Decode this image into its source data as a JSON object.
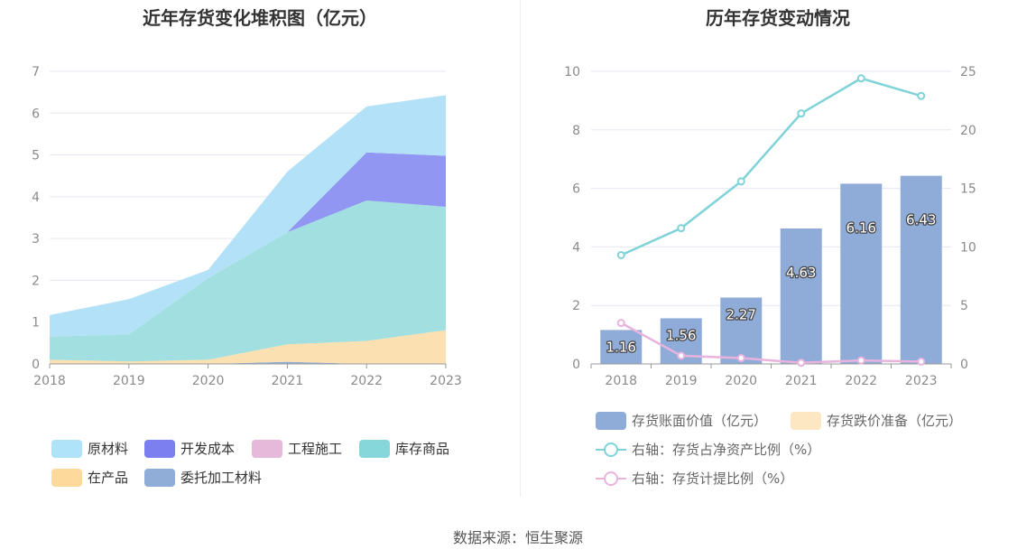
{
  "titles": {
    "left": "近年存货变化堆积图（亿元）",
    "right": "历年存货变动情况"
  },
  "source": "数据来源：恒生聚源",
  "chart_data": [
    {
      "type": "area",
      "title": "近年存货变化堆积图（亿元）",
      "x": [
        "2018",
        "2019",
        "2020",
        "2021",
        "2022",
        "2023"
      ],
      "ylim": [
        0,
        7
      ],
      "yticks": [
        "0",
        "1",
        "2",
        "3",
        "4",
        "5",
        "6",
        "7"
      ],
      "grid": true,
      "legend_position": "bottom",
      "stack_order": [
        "委托加工材料",
        "在产品",
        "库存商品",
        "工程施工",
        "开发成本",
        "原材料"
      ],
      "series": [
        {
          "name": "原材料",
          "color": "#b3e1f7",
          "values": [
            0.52,
            0.84,
            0.2,
            1.45,
            1.1,
            1.45
          ]
        },
        {
          "name": "开发成本",
          "color": "#9196f2",
          "values": [
            0.0,
            0.0,
            0.0,
            0.0,
            1.15,
            1.22
          ]
        },
        {
          "name": "工程施工",
          "color": "#e6b8da",
          "values": [
            0.0,
            0.0,
            0.0,
            0.0,
            0.0,
            0.0
          ]
        },
        {
          "name": "库存商品",
          "color": "#a1dfe0",
          "values": [
            0.55,
            0.65,
            1.95,
            2.68,
            3.36,
            2.95
          ]
        },
        {
          "name": "在产品",
          "color": "#fbe0b1",
          "values": [
            0.1,
            0.06,
            0.1,
            0.42,
            0.55,
            0.81
          ]
        },
        {
          "name": "委托加工材料",
          "color": "#8fadd6",
          "values": [
            0.0,
            0.0,
            0.0,
            0.05,
            0.0,
            0.0
          ]
        }
      ],
      "legend": [
        {
          "label": "原材料",
          "color": "#aee3fa"
        },
        {
          "label": "开发成本",
          "color": "#7b7ff0"
        },
        {
          "label": "工程施工",
          "color": "#e6b8da"
        },
        {
          "label": "库存商品",
          "color": "#86d7d9"
        },
        {
          "label": "在产品",
          "color": "#fdd99b"
        },
        {
          "label": "委托加工材料",
          "color": "#8fadd6"
        }
      ]
    },
    {
      "type": "bar",
      "title": "历年存货变动情况",
      "categories": [
        "2018",
        "2019",
        "2020",
        "2021",
        "2022",
        "2023"
      ],
      "ylim": [
        0,
        10
      ],
      "yticks": [
        "0",
        "2",
        "4",
        "6",
        "8",
        "10"
      ],
      "y2lim": [
        0,
        25
      ],
      "y2ticks": [
        "0",
        "5",
        "10",
        "15",
        "20",
        "25"
      ],
      "grid": true,
      "legend_position": "bottom",
      "series": [
        {
          "name": "存货账面价值（亿元）",
          "kind": "bar",
          "color": "#8facd9",
          "values": [
            1.16,
            1.56,
            2.27,
            4.63,
            6.16,
            6.43
          ],
          "labels": [
            "1.16",
            "1.56",
            "2.27",
            "4.63",
            "6.16",
            "6.43"
          ]
        },
        {
          "name": "存货跌价准备（亿元）",
          "kind": "bar",
          "color": "#fde6c2",
          "values": [
            0.0,
            0.0,
            0.0,
            0.0,
            0.0,
            0.0
          ]
        },
        {
          "name": "右轴：存货占净资产比例（%）",
          "kind": "line",
          "axis": "right",
          "color": "#7fd3d8",
          "values": [
            9.3,
            11.6,
            15.6,
            21.4,
            24.4,
            22.9
          ]
        },
        {
          "name": "右轴：存货计提比例（%）",
          "kind": "line",
          "axis": "right",
          "color": "#e8b3dd",
          "values": [
            3.5,
            0.7,
            0.5,
            0.1,
            0.3,
            0.2
          ]
        }
      ]
    }
  ]
}
